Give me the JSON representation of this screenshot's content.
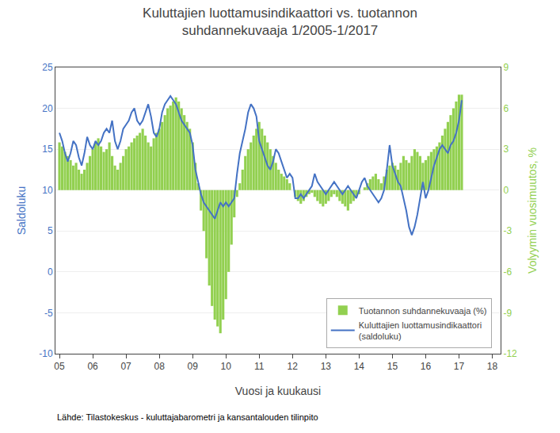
{
  "chart_data": {
    "type": "bar",
    "title": "Kuluttajien luottamusindikaattori vs. tuotannon\nsuhdannekuvaaja 1/2005-1/2017",
    "xlabel": "Vuosi ja kuukausi",
    "ylabel": "Saldoluku",
    "y2label": "Volyymin vuosimuutos, %",
    "source": "Lähde: Tilastokeskus - kuluttajabarometri ja kansantalouden tilinpito",
    "x": [
      5,
      5.0833,
      5.1667,
      5.25,
      5.3333,
      5.4167,
      5.5,
      5.5833,
      5.6667,
      5.75,
      5.8333,
      5.9167,
      6,
      6.0833,
      6.1667,
      6.25,
      6.3333,
      6.4167,
      6.5,
      6.5833,
      6.6667,
      6.75,
      6.8333,
      6.9167,
      7,
      7.0833,
      7.1667,
      7.25,
      7.3333,
      7.4167,
      7.5,
      7.5833,
      7.6667,
      7.75,
      7.8333,
      7.9167,
      8,
      8.0833,
      8.1667,
      8.25,
      8.3333,
      8.4167,
      8.5,
      8.5833,
      8.6667,
      8.75,
      8.8333,
      8.9167,
      9,
      9.0833,
      9.1667,
      9.25,
      9.3333,
      9.4167,
      9.5,
      9.5833,
      9.6667,
      9.75,
      9.8333,
      9.9167,
      10,
      10.0833,
      10.1667,
      10.25,
      10.3333,
      10.4167,
      10.5,
      10.5833,
      10.6667,
      10.75,
      10.8333,
      10.9167,
      11,
      11.0833,
      11.1667,
      11.25,
      11.3333,
      11.4167,
      11.5,
      11.5833,
      11.6667,
      11.75,
      11.8333,
      11.9167,
      12,
      12.0833,
      12.1667,
      12.25,
      12.3333,
      12.4167,
      12.5,
      12.5833,
      12.6667,
      12.75,
      12.8333,
      12.9167,
      13,
      13.0833,
      13.1667,
      13.25,
      13.3333,
      13.4167,
      13.5,
      13.5833,
      13.6667,
      13.75,
      13.8333,
      13.9167,
      14,
      14.0833,
      14.1667,
      14.25,
      14.3333,
      14.4167,
      14.5,
      14.5833,
      14.6667,
      14.75,
      14.8333,
      14.9167,
      15,
      15.0833,
      15.1667,
      15.25,
      15.3333,
      15.4167,
      15.5,
      15.5833,
      15.6667,
      15.75,
      15.8333,
      15.9167,
      16,
      16.0833,
      16.1667,
      16.25,
      16.3333,
      16.4167,
      16.5,
      16.5833,
      16.6667,
      16.75,
      16.8333,
      16.9167,
      17,
      17.0833
    ],
    "series": [
      {
        "name": "Tuotannon suhdannekuvaaja (%)",
        "type": "bar",
        "axis": "y2",
        "color": "#92D050",
        "values": [
          3.5,
          3.2,
          2.8,
          2.5,
          2.2,
          1.8,
          2.0,
          1.5,
          1.2,
          1.5,
          2.0,
          2.5,
          3.0,
          3.5,
          3.8,
          3.2,
          2.8,
          3.0,
          3.5,
          2.5,
          1.8,
          1.5,
          2.0,
          2.5,
          3.0,
          3.2,
          3.5,
          3.8,
          4.0,
          4.2,
          4.5,
          4.0,
          3.5,
          3.2,
          3.8,
          4.2,
          4.5,
          5.0,
          5.5,
          6.0,
          6.2,
          6.5,
          6.8,
          6.5,
          6.0,
          5.5,
          5.0,
          4.5,
          3.5,
          2.0,
          0.5,
          -1.5,
          -3.0,
          -5.0,
          -7.0,
          -8.5,
          -9.5,
          -10.0,
          -10.5,
          -9.5,
          -8.0,
          -6.0,
          -4.0,
          -2.0,
          -0.5,
          0.5,
          1.5,
          2.5,
          3.0,
          3.5,
          4.0,
          4.5,
          5.0,
          4.5,
          4.0,
          3.5,
          3.0,
          2.5,
          2.0,
          1.5,
          1.2,
          1.0,
          0.8,
          0.5,
          0.0,
          -0.5,
          -0.8,
          -1.0,
          -0.8,
          -0.5,
          -0.3,
          -0.2,
          -0.5,
          -0.8,
          -1.0,
          -1.2,
          -1.0,
          -0.8,
          -0.5,
          -0.3,
          -0.5,
          -0.8,
          -1.0,
          -1.2,
          -1.5,
          -1.0,
          -0.8,
          -0.5,
          -0.3,
          0.0,
          0.2,
          0.5,
          0.8,
          1.0,
          1.2,
          0.8,
          0.5,
          1.0,
          1.5,
          1.8,
          2.0,
          1.8,
          1.5,
          2.0,
          2.5,
          2.2,
          2.0,
          2.5,
          3.0,
          2.8,
          2.5,
          2.0,
          2.2,
          2.5,
          2.8,
          3.0,
          3.2,
          3.5,
          4.0,
          4.5,
          5.0,
          5.5,
          6.0,
          6.5,
          7.0,
          7.0
        ]
      },
      {
        "name": "Kuluttajien luottamusindikaattori\n(saldoluku)",
        "type": "line",
        "color": "#4472C4",
        "values": [
          17.0,
          16.0,
          14.5,
          13.5,
          14.5,
          16.0,
          15.5,
          14.0,
          13.0,
          14.5,
          16.5,
          15.5,
          15.0,
          16.0,
          15.5,
          16.0,
          17.0,
          17.5,
          17.0,
          18.5,
          16.0,
          15.0,
          16.0,
          17.5,
          18.0,
          18.5,
          19.5,
          20.0,
          18.5,
          18.0,
          18.5,
          19.5,
          20.5,
          19.0,
          17.0,
          16.5,
          17.5,
          19.5,
          20.5,
          21.0,
          21.5,
          21.0,
          20.5,
          19.5,
          18.5,
          18.0,
          17.5,
          17.0,
          15.5,
          12.5,
          11.0,
          9.5,
          8.5,
          8.0,
          7.5,
          7.0,
          6.5,
          7.5,
          8.5,
          8.0,
          8.5,
          8.0,
          8.5,
          9.0,
          12.0,
          14.5,
          16.0,
          17.5,
          19.5,
          20.5,
          20.0,
          19.0,
          16.0,
          15.0,
          14.0,
          13.0,
          12.5,
          13.5,
          15.0,
          14.5,
          13.5,
          12.5,
          11.5,
          12.0,
          11.5,
          9.0,
          9.0,
          9.5,
          9.0,
          9.5,
          10.0,
          10.5,
          12.0,
          11.0,
          10.5,
          10.0,
          9.5,
          10.0,
          10.5,
          11.0,
          10.5,
          10.0,
          9.5,
          10.0,
          10.5,
          10.0,
          9.5,
          9.0,
          10.0,
          11.0,
          11.5,
          10.5,
          10.0,
          9.5,
          9.0,
          8.5,
          9.0,
          10.0,
          12.5,
          15.5,
          13.0,
          12.0,
          11.0,
          10.5,
          9.0,
          7.5,
          5.5,
          4.5,
          5.5,
          7.0,
          9.0,
          11.0,
          9.0,
          10.0,
          11.5,
          13.0,
          14.0,
          15.0,
          15.5,
          15.0,
          14.5,
          15.5,
          16.0,
          17.0,
          18.5,
          21.0
        ]
      }
    ],
    "xlim": [
      4.88,
      18.25
    ],
    "xticks": [
      {
        "value": 5,
        "label": "05"
      },
      {
        "value": 6,
        "label": "06"
      },
      {
        "value": 7,
        "label": "07"
      },
      {
        "value": 8,
        "label": "08"
      },
      {
        "value": 9,
        "label": "09"
      },
      {
        "value": 10,
        "label": "10"
      },
      {
        "value": 11,
        "label": "11"
      },
      {
        "value": 12,
        "label": "12"
      },
      {
        "value": 13,
        "label": "13"
      },
      {
        "value": 14,
        "label": "14"
      },
      {
        "value": 15,
        "label": "15"
      },
      {
        "value": 16,
        "label": "16"
      },
      {
        "value": 17,
        "label": "17"
      },
      {
        "value": 18,
        "label": "18"
      }
    ],
    "ylim": [
      -10,
      25
    ],
    "yticks": [
      -10,
      -5,
      0,
      5,
      10,
      15,
      20,
      25
    ],
    "y2lim": [
      -12,
      9
    ],
    "y2ticks": [
      -12,
      -9,
      -6,
      -3,
      0,
      3,
      6,
      9
    ],
    "grid": true,
    "legend": "lower right"
  }
}
